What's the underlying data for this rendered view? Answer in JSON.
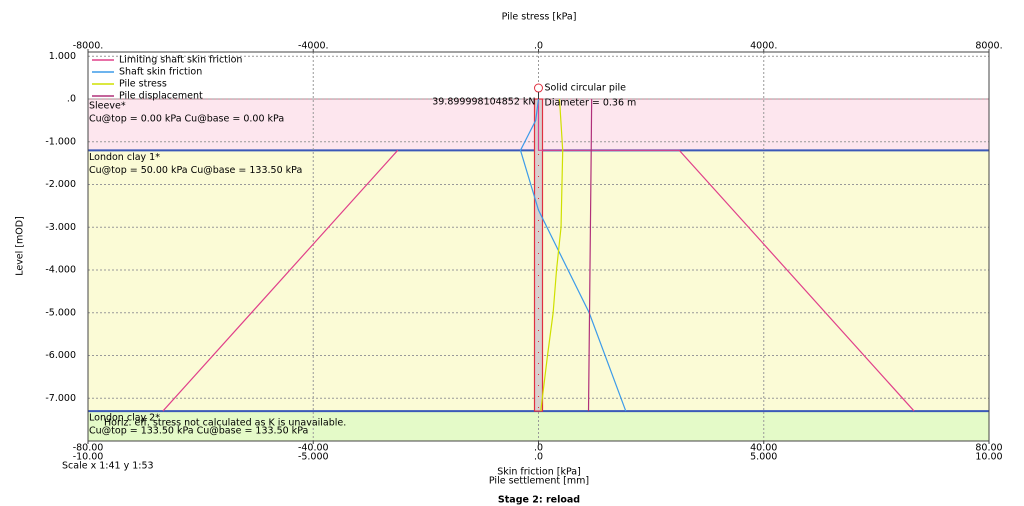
{
  "chart_data": {
    "type": "pile-profile",
    "top_axis_title": "Pile stress [kPa]",
    "y_axis_title": "Level [mOD]",
    "x_axis_title": "Skin friction [kPa]",
    "x3_axis_title": "Pile settlement [mm]",
    "stage": "Stage 2: reload",
    "scale_note": "Scale x 1:41  y 1:53",
    "ylim": [
      -8.0,
      1.1
    ],
    "yticks": [
      {
        "value": 1,
        "label": "1.000"
      },
      {
        "value": 0,
        "label": ".0"
      },
      {
        "value": -1,
        "label": "-1.000"
      },
      {
        "value": -2,
        "label": "-2.000"
      },
      {
        "value": -3,
        "label": "-3.000"
      },
      {
        "value": -4,
        "label": "-4.000"
      },
      {
        "value": -5,
        "label": "-5.000"
      },
      {
        "value": -6,
        "label": "-6.000"
      },
      {
        "value": -7,
        "label": "-7.000"
      }
    ],
    "xlim": [
      -80,
      80
    ],
    "xticks": [
      {
        "value": -80,
        "label": "-80.00"
      },
      {
        "value": -40,
        "label": "-40.00"
      },
      {
        "value": 0,
        "label": ".0"
      },
      {
        "value": 40,
        "label": "40.00"
      },
      {
        "value": 80,
        "label": "80.00"
      }
    ],
    "x2lim": [
      -8000,
      8000
    ],
    "x2ticks": [
      {
        "value": -8000,
        "label": "-8000."
      },
      {
        "value": -4000,
        "label": "-4000."
      },
      {
        "value": 0,
        "label": ".0"
      },
      {
        "value": 4000,
        "label": "4000."
      },
      {
        "value": 8000,
        "label": "8000."
      }
    ],
    "x3lim": [
      -10,
      10
    ],
    "x3ticks": [
      {
        "value": -10,
        "label": "-10.00"
      },
      {
        "value": -5,
        "label": "-5.000"
      },
      {
        "value": 0,
        "label": ".0"
      },
      {
        "value": 5,
        "label": "5.000"
      },
      {
        "value": 10,
        "label": "10.00"
      }
    ],
    "grid": true,
    "layers": [
      {
        "name": "Sleeve*",
        "top": 0,
        "base": -1.2,
        "text": "Cu@top = 0.00 kPa Cu@base = 0.00 kPa",
        "color": "#fde6ee",
        "line_color": "#9a3fb0"
      },
      {
        "name": "London clay 1*",
        "top": -1.2,
        "base": -7.3,
        "text": "Cu@top = 50.00 kPa Cu@base = 133.50 kPa",
        "color": "#fbfbd6",
        "line_color": "#3a58b8"
      },
      {
        "name": "London clay 2*",
        "top": -7.3,
        "base": -8.0,
        "text": "Cu@top = 133.50 kPa Cu@base = 133.50 kPa",
        "color": "#e4fac8",
        "line_color": "#3a58b8"
      }
    ],
    "note": "Horiz. eff. stress not calculated as K is unavailable.",
    "pile": {
      "label": "Solid circular pile",
      "diameter_label": "Diameter = 0.36 m",
      "load_label": "39.899998104852 kN",
      "top": 0,
      "base": -7.3
    },
    "series": [
      {
        "name": "Limiting shaft skin friction",
        "color": "#e0408a",
        "axis": "x",
        "levels": [
          0,
          -1.2,
          -1.2,
          -7.3,
          null,
          -1.2,
          -7.3
        ],
        "values": [
          0,
          0,
          25,
          66.7,
          null,
          -25,
          -66.7
        ]
      },
      {
        "name": "Shaft skin friction",
        "color": "#3d9be9",
        "axis": "x",
        "levels": [
          0,
          -0.5,
          -1.2,
          -2.6,
          -5,
          -7.3
        ],
        "values": [
          0,
          -0.5,
          -3.2,
          0,
          9,
          15.5
        ]
      },
      {
        "name": "Pile stress",
        "color": "#cfe000",
        "axis": "x2",
        "levels": [
          0,
          -1.2,
          -3,
          -4,
          -5,
          -6,
          -7.3
        ],
        "values": [
          373,
          430,
          400,
          320,
          260,
          160,
          40
        ]
      },
      {
        "name": "Pile displacement",
        "color": "#b0307a",
        "axis": "x3",
        "levels": [
          0,
          -1.2,
          -7.3
        ],
        "values": [
          1.18,
          1.17,
          1.11
        ]
      }
    ]
  }
}
